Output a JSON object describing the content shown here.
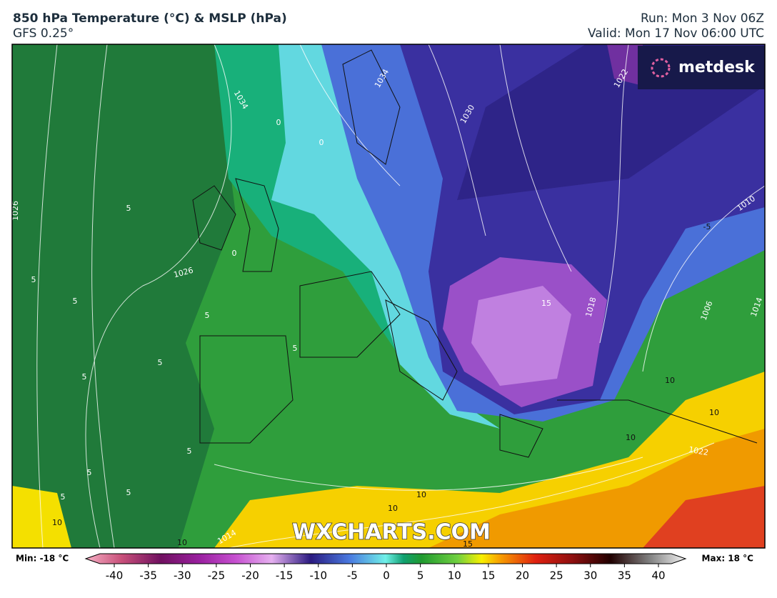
{
  "header": {
    "title": "850 hPa Temperature (°C) & MSLP (hPa)",
    "subtitle": "GFS 0.25°",
    "run": "Run: Mon 3 Nov 06Z",
    "valid": "Valid: Mon 17 Nov 06:00 UTC"
  },
  "logo": "metdesk",
  "watermark": "WXCHARTS.COM",
  "map_labels": [
    "1034",
    "1034",
    "1030",
    "1022",
    "1026",
    "1026",
    "1010",
    "1018",
    "1006",
    "1014",
    "1022",
    "1014",
    "0",
    "0",
    "0",
    "5",
    "5",
    "5",
    "5",
    "5",
    "5",
    "5",
    "5",
    "5",
    "5",
    "5",
    "10",
    "10",
    "10",
    "10",
    "10",
    "10",
    "15",
    "-5",
    "10",
    "15"
  ],
  "colorbar": {
    "min_label": "Min: -18 °C",
    "max_label": "Max: 18 °C",
    "range": [
      -40,
      40
    ],
    "ticks": [
      -40,
      -35,
      -30,
      -25,
      -20,
      -15,
      -10,
      -5,
      0,
      5,
      10,
      15,
      20,
      25,
      30,
      35,
      40
    ]
  }
}
